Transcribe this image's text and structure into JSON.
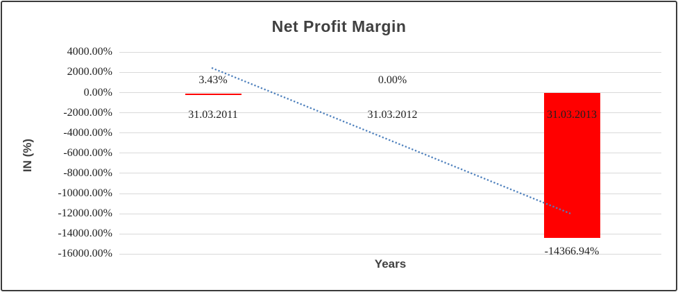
{
  "page": {
    "background": "#FFFFFF",
    "border_color": "#3a3a3a"
  },
  "chart": {
    "title": "Net Profit Margin",
    "x_axis_title": "Years",
    "y_axis_title": "IN (%)"
  },
  "chart_data": {
    "type": "bar",
    "title": "Net Profit Margin",
    "xlabel": "Years",
    "ylabel": "IN (%)",
    "categories": [
      "31.03.2011",
      "31.03.2012",
      "31.03.2013"
    ],
    "series": [
      {
        "name": "Net Profit Margin",
        "values": [
          3.43,
          0,
          -14366.94
        ],
        "labels": [
          "3.43%",
          "0.00%",
          "-14366.94%"
        ],
        "color": "#FF0000"
      }
    ],
    "ylim": [
      -16000,
      4000
    ],
    "yticks": [
      {
        "value": 4000,
        "label": "4000.00%"
      },
      {
        "value": 2000,
        "label": "2000.00%"
      },
      {
        "value": 0,
        "label": "0.00%"
      },
      {
        "value": -2000,
        "label": "-2000.00%"
      },
      {
        "value": -4000,
        "label": "-4000.00%"
      },
      {
        "value": -6000,
        "label": "-6000.00%"
      },
      {
        "value": -8000,
        "label": "-8000.00%"
      },
      {
        "value": -10000,
        "label": "-10000.00%"
      },
      {
        "value": -12000,
        "label": "-12000.00%"
      },
      {
        "value": -14000,
        "label": "-14000.00%"
      },
      {
        "value": -16000,
        "label": "-16000.00%"
      }
    ],
    "grid": true,
    "gridline_color": "#D9D9D9",
    "legend": "none",
    "trendline": {
      "type": "linear",
      "style": "dotted",
      "color": "#4F81BD",
      "start_category": 0,
      "end_category": 2,
      "start_value": 2450,
      "end_value": -11985
    }
  }
}
